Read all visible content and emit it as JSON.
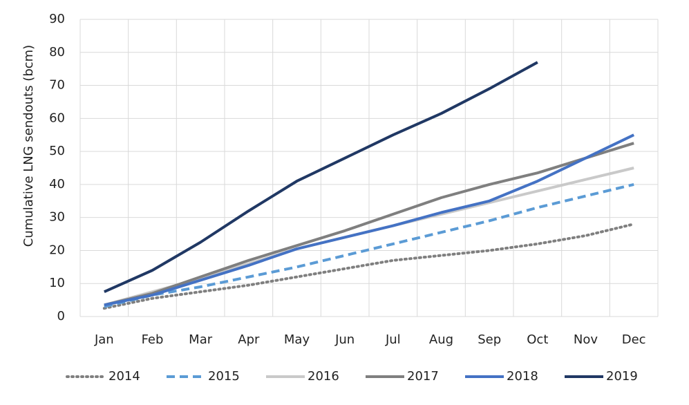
{
  "chart_data": {
    "type": "line",
    "y_label": "Cumulative  LNG sendouts (bcm)",
    "categories": [
      "Jan",
      "Feb",
      "Mar",
      "Apr",
      "May",
      "Jun",
      "Jul",
      "Aug",
      "Sep",
      "Oct",
      "Nov",
      "Dec"
    ],
    "ylim": [
      0,
      90
    ],
    "yticks": [
      0,
      10,
      20,
      30,
      40,
      50,
      60,
      70,
      80,
      90
    ],
    "grid": true,
    "legend": "bottom",
    "series": [
      {
        "name": "2014",
        "color": "#7f7f7f",
        "style": "dotted",
        "values": [
          2.5,
          5.5,
          7.5,
          9.5,
          12,
          14.5,
          17,
          18.5,
          20,
          22,
          24.5,
          28
        ]
      },
      {
        "name": "2015",
        "color": "#5b9bd5",
        "style": "dashed",
        "values": [
          3,
          6.5,
          9,
          12,
          15,
          18.5,
          22,
          25.5,
          29,
          33,
          36.5,
          40
        ]
      },
      {
        "name": "2016",
        "color": "#c9c9c9",
        "style": "solid",
        "values": [
          3.5,
          7.5,
          11.5,
          16,
          20.5,
          24,
          27.5,
          31,
          34.5,
          38,
          41.5,
          45
        ]
      },
      {
        "name": "2017",
        "color": "#7f7f7f",
        "style": "solid",
        "values": [
          3.5,
          7,
          12,
          17,
          21.5,
          26,
          31,
          36,
          40,
          43.5,
          48,
          52.5
        ]
      },
      {
        "name": "2018",
        "color": "#4472c4",
        "style": "solid",
        "values": [
          3.5,
          6.5,
          11,
          15.5,
          20.5,
          24,
          27.5,
          31.5,
          35,
          41,
          48,
          55
        ]
      },
      {
        "name": "2019",
        "color": "#203864",
        "style": "solid",
        "values": [
          7.5,
          14,
          22.5,
          32,
          41,
          48,
          55,
          61.5,
          69,
          77,
          null,
          null
        ]
      }
    ]
  }
}
